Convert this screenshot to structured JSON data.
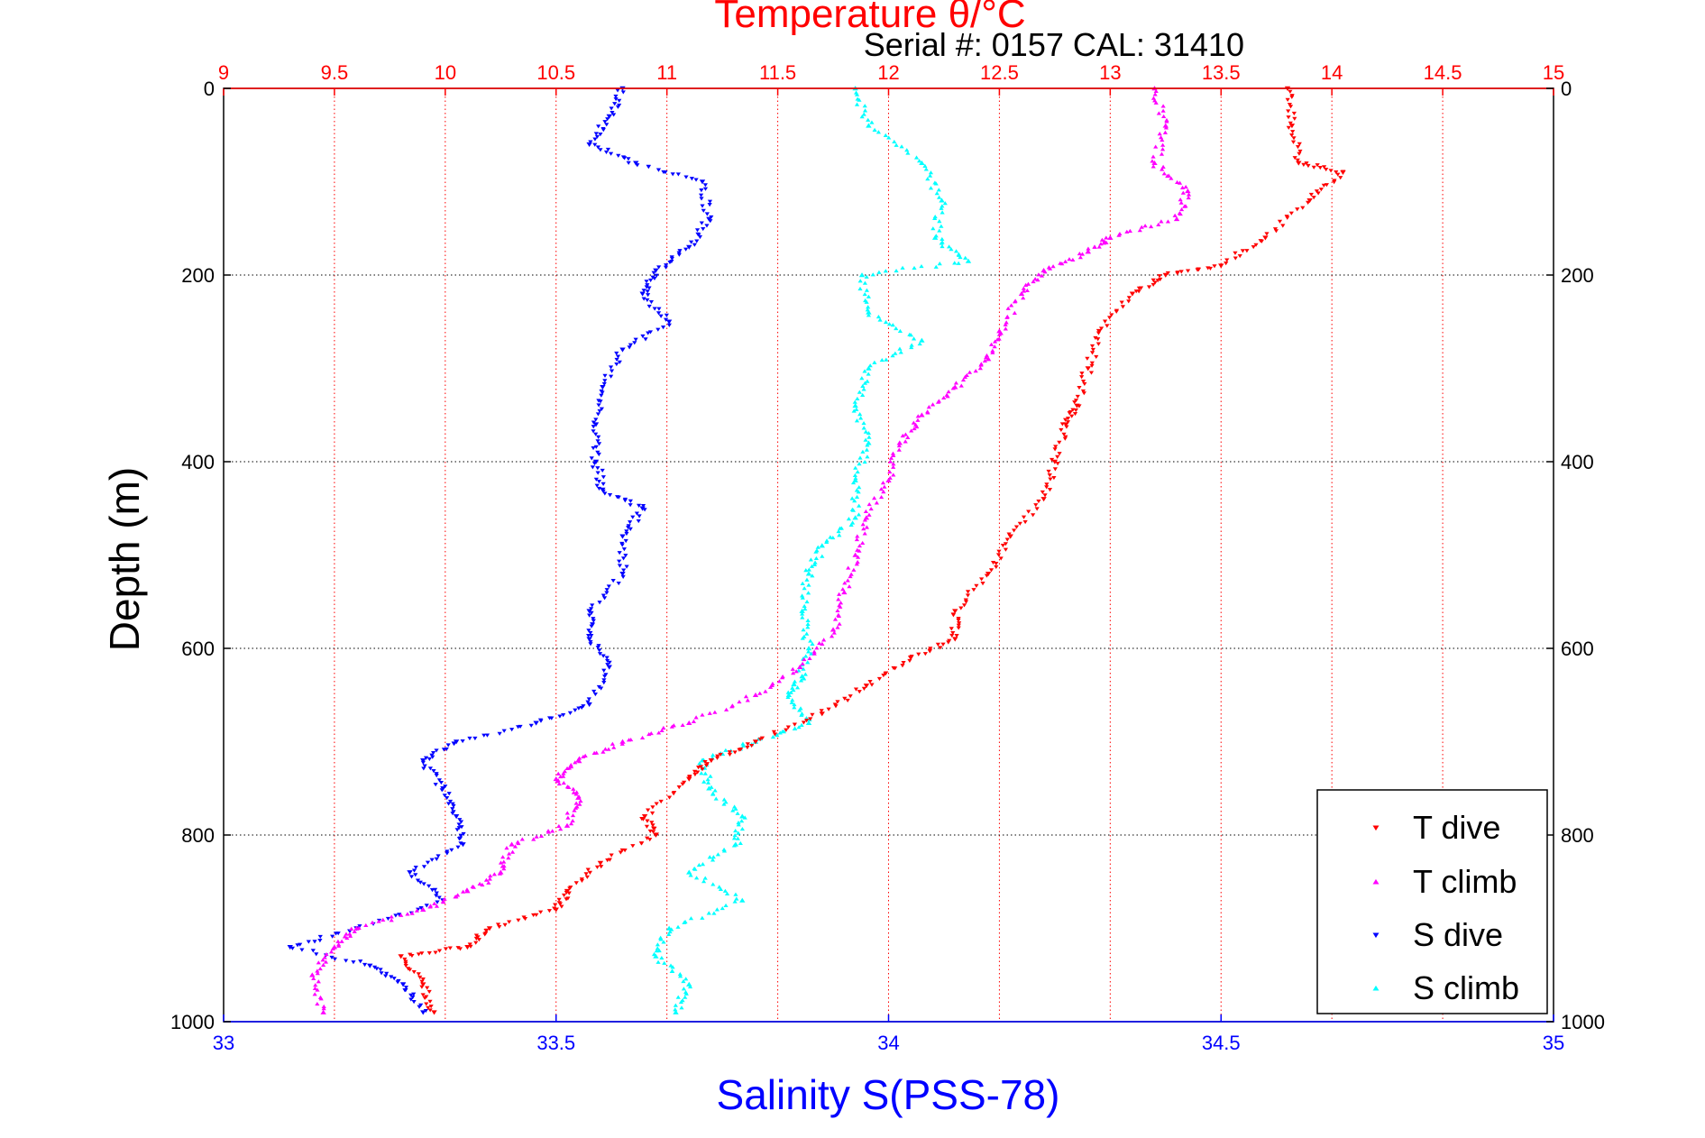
{
  "chart_data": {
    "type": "scatter",
    "title": "Temperature θ/°C",
    "subtitle": "Serial #: 0157  CAL: 31410",
    "xlabel": "Salinity S(PSS-78)",
    "ylabel": "Depth (m)",
    "top_axis": {
      "label": "Temperature θ/°C",
      "lim": [
        9,
        15
      ],
      "ticks": [
        "9",
        "9.5",
        "10",
        "10.5",
        "11",
        "11.5",
        "12",
        "12.5",
        "13",
        "13.5",
        "14",
        "14.5",
        "15"
      ],
      "grid": true,
      "color": "#ff0000"
    },
    "bottom_axis": {
      "label": "Salinity S(PSS-78)",
      "lim": [
        33,
        35
      ],
      "ticks": [
        "33",
        "33.5",
        "34",
        "34.5",
        "35"
      ],
      "color": "#0000ff"
    },
    "y_axis": {
      "label": "Depth (m)",
      "lim": [
        0,
        1000
      ],
      "reversed": true,
      "ticks": [
        "0",
        "200",
        "400",
        "600",
        "800",
        "1000"
      ],
      "grid": true
    },
    "legend": {
      "position": "bottom-right",
      "entries": [
        "T dive",
        "T climb",
        "S dive",
        "S climb"
      ]
    },
    "series": [
      {
        "name": "T dive",
        "axis": "temperature",
        "color": "#ff0000",
        "marker": "triangle-down",
        "points": [
          [
            13.8,
            0
          ],
          [
            13.82,
            40
          ],
          [
            13.85,
            80
          ],
          [
            14.05,
            90
          ],
          [
            13.9,
            120
          ],
          [
            13.7,
            160
          ],
          [
            13.5,
            190
          ],
          [
            13.25,
            200
          ],
          [
            13.1,
            220
          ],
          [
            12.95,
            260
          ],
          [
            12.9,
            300
          ],
          [
            12.85,
            340
          ],
          [
            12.8,
            360
          ],
          [
            12.75,
            400
          ],
          [
            12.7,
            440
          ],
          [
            12.55,
            480
          ],
          [
            12.45,
            520
          ],
          [
            12.3,
            560
          ],
          [
            12.3,
            590
          ],
          [
            12.1,
            610
          ],
          [
            11.9,
            640
          ],
          [
            11.7,
            670
          ],
          [
            11.4,
            700
          ],
          [
            11.2,
            720
          ],
          [
            11.1,
            740
          ],
          [
            10.9,
            780
          ],
          [
            10.95,
            800
          ],
          [
            10.7,
            830
          ],
          [
            10.55,
            860
          ],
          [
            10.5,
            880
          ],
          [
            10.2,
            900
          ],
          [
            10.1,
            920
          ],
          [
            9.8,
            930
          ],
          [
            9.9,
            960
          ],
          [
            9.95,
            990
          ]
        ]
      },
      {
        "name": "T climb",
        "axis": "temperature",
        "color": "#ff00ff",
        "marker": "triangle-up",
        "points": [
          [
            13.2,
            0
          ],
          [
            13.25,
            40
          ],
          [
            13.2,
            80
          ],
          [
            13.35,
            110
          ],
          [
            13.3,
            140
          ],
          [
            13.0,
            160
          ],
          [
            12.9,
            175
          ],
          [
            12.7,
            195
          ],
          [
            12.6,
            220
          ],
          [
            12.5,
            260
          ],
          [
            12.45,
            290
          ],
          [
            12.3,
            320
          ],
          [
            12.15,
            350
          ],
          [
            12.05,
            380
          ],
          [
            12.0,
            420
          ],
          [
            11.9,
            460
          ],
          [
            11.85,
            500
          ],
          [
            11.8,
            540
          ],
          [
            11.75,
            580
          ],
          [
            11.6,
            620
          ],
          [
            11.4,
            650
          ],
          [
            11.1,
            680
          ],
          [
            10.8,
            700
          ],
          [
            10.6,
            720
          ],
          [
            10.5,
            740
          ],
          [
            10.6,
            760
          ],
          [
            10.55,
            790
          ],
          [
            10.3,
            810
          ],
          [
            10.25,
            840
          ],
          [
            10.1,
            860
          ],
          [
            9.9,
            880
          ],
          [
            9.6,
            900
          ],
          [
            9.5,
            920
          ],
          [
            9.4,
            950
          ],
          [
            9.45,
            990
          ]
        ]
      },
      {
        "name": "S dive",
        "axis": "salinity",
        "color": "#0000ff",
        "marker": "triangle-down",
        "points": [
          [
            33.6,
            0
          ],
          [
            33.58,
            30
          ],
          [
            33.55,
            60
          ],
          [
            33.62,
            80
          ],
          [
            33.72,
            100
          ],
          [
            33.73,
            140
          ],
          [
            33.7,
            170
          ],
          [
            33.65,
            195
          ],
          [
            33.63,
            220
          ],
          [
            33.67,
            250
          ],
          [
            33.6,
            280
          ],
          [
            33.57,
            320
          ],
          [
            33.56,
            360
          ],
          [
            33.56,
            400
          ],
          [
            33.57,
            430
          ],
          [
            33.63,
            450
          ],
          [
            33.6,
            480
          ],
          [
            33.6,
            520
          ],
          [
            33.55,
            560
          ],
          [
            33.55,
            590
          ],
          [
            33.58,
            620
          ],
          [
            33.55,
            660
          ],
          [
            33.47,
            680
          ],
          [
            33.35,
            700
          ],
          [
            33.3,
            720
          ],
          [
            33.33,
            750
          ],
          [
            33.35,
            780
          ],
          [
            33.36,
            810
          ],
          [
            33.28,
            840
          ],
          [
            33.33,
            870
          ],
          [
            33.2,
            900
          ],
          [
            33.1,
            920
          ],
          [
            33.22,
            940
          ],
          [
            33.27,
            960
          ],
          [
            33.3,
            990
          ]
        ]
      },
      {
        "name": "S climb",
        "axis": "salinity",
        "color": "#00ffff",
        "marker": "triangle-up",
        "points": [
          [
            33.95,
            0
          ],
          [
            33.97,
            40
          ],
          [
            34.05,
            80
          ],
          [
            34.08,
            120
          ],
          [
            34.07,
            160
          ],
          [
            34.12,
            185
          ],
          [
            33.96,
            200
          ],
          [
            33.97,
            240
          ],
          [
            34.05,
            270
          ],
          [
            33.97,
            300
          ],
          [
            33.95,
            340
          ],
          [
            33.97,
            380
          ],
          [
            33.95,
            420
          ],
          [
            33.95,
            460
          ],
          [
            33.9,
            490
          ],
          [
            33.88,
            520
          ],
          [
            33.87,
            560
          ],
          [
            33.88,
            600
          ],
          [
            33.87,
            630
          ],
          [
            33.85,
            650
          ],
          [
            33.88,
            680
          ],
          [
            33.8,
            700
          ],
          [
            33.72,
            720
          ],
          [
            33.73,
            750
          ],
          [
            33.78,
            780
          ],
          [
            33.77,
            810
          ],
          [
            33.7,
            840
          ],
          [
            33.78,
            870
          ],
          [
            33.67,
            900
          ],
          [
            33.65,
            930
          ],
          [
            33.7,
            960
          ],
          [
            33.68,
            990
          ]
        ]
      }
    ]
  }
}
